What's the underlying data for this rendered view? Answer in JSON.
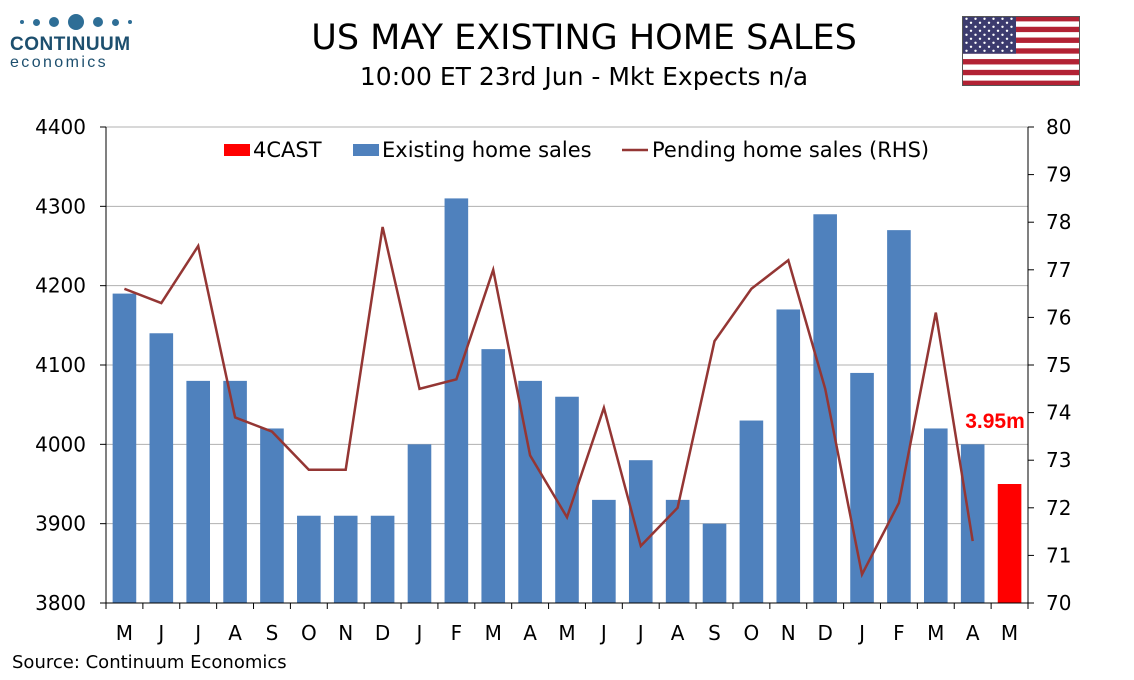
{
  "header": {
    "logo_name": "CONTINUUM",
    "logo_sub": "economics",
    "title": "US MAY EXISTING HOME SALES",
    "subtitle": "10:00 ET 23rd Jun - Mkt Expects n/a",
    "flag_icon": "us-flag-icon"
  },
  "footer": {
    "source": "Source: Continuum Economics"
  },
  "colors": {
    "bars": "#4f81bd",
    "forecast": "#ff0000",
    "line": "#943634",
    "grid": "#b0b0b0"
  },
  "chart_data": {
    "type": "bar",
    "categories": [
      "M",
      "J",
      "J",
      "A",
      "S",
      "O",
      "N",
      "D",
      "J",
      "F",
      "M",
      "A",
      "M",
      "J",
      "J",
      "A",
      "S",
      "O",
      "N",
      "D",
      "J",
      "F",
      "M",
      "A",
      "M"
    ],
    "series": [
      {
        "name": "4CAST",
        "type": "bar",
        "axis": "left",
        "values": [
          null,
          null,
          null,
          null,
          null,
          null,
          null,
          null,
          null,
          null,
          null,
          null,
          null,
          null,
          null,
          null,
          null,
          null,
          null,
          null,
          null,
          null,
          null,
          null,
          3950
        ]
      },
      {
        "name": "Existing home sales",
        "type": "bar",
        "axis": "left",
        "values": [
          4190,
          4140,
          4080,
          4080,
          4020,
          3910,
          3910,
          3910,
          4000,
          4310,
          4120,
          4080,
          4060,
          3930,
          3980,
          3930,
          3900,
          4030,
          4170,
          4290,
          4090,
          4270,
          4020,
          4000,
          null
        ]
      },
      {
        "name": "Pending home sales (RHS)",
        "type": "line",
        "axis": "right",
        "values": [
          76.6,
          76.3,
          77.5,
          73.9,
          73.6,
          72.8,
          72.8,
          77.9,
          74.5,
          74.7,
          77.0,
          73.1,
          71.8,
          74.1,
          71.2,
          72.0,
          75.5,
          76.6,
          77.2,
          74.5,
          70.6,
          72.1,
          76.1,
          71.3,
          null
        ]
      }
    ],
    "ylim_left": [
      3800,
      4400
    ],
    "yticks_left": [
      "3800",
      "3900",
      "4000",
      "4100",
      "4200",
      "4300",
      "4400"
    ],
    "ylim_right": [
      70,
      80
    ],
    "yticks_right": [
      "70",
      "71",
      "72",
      "73",
      "74",
      "75",
      "76",
      "77",
      "78",
      "79",
      "80"
    ],
    "annotation": "3.95m",
    "grid": true,
    "legend_position": "top"
  }
}
